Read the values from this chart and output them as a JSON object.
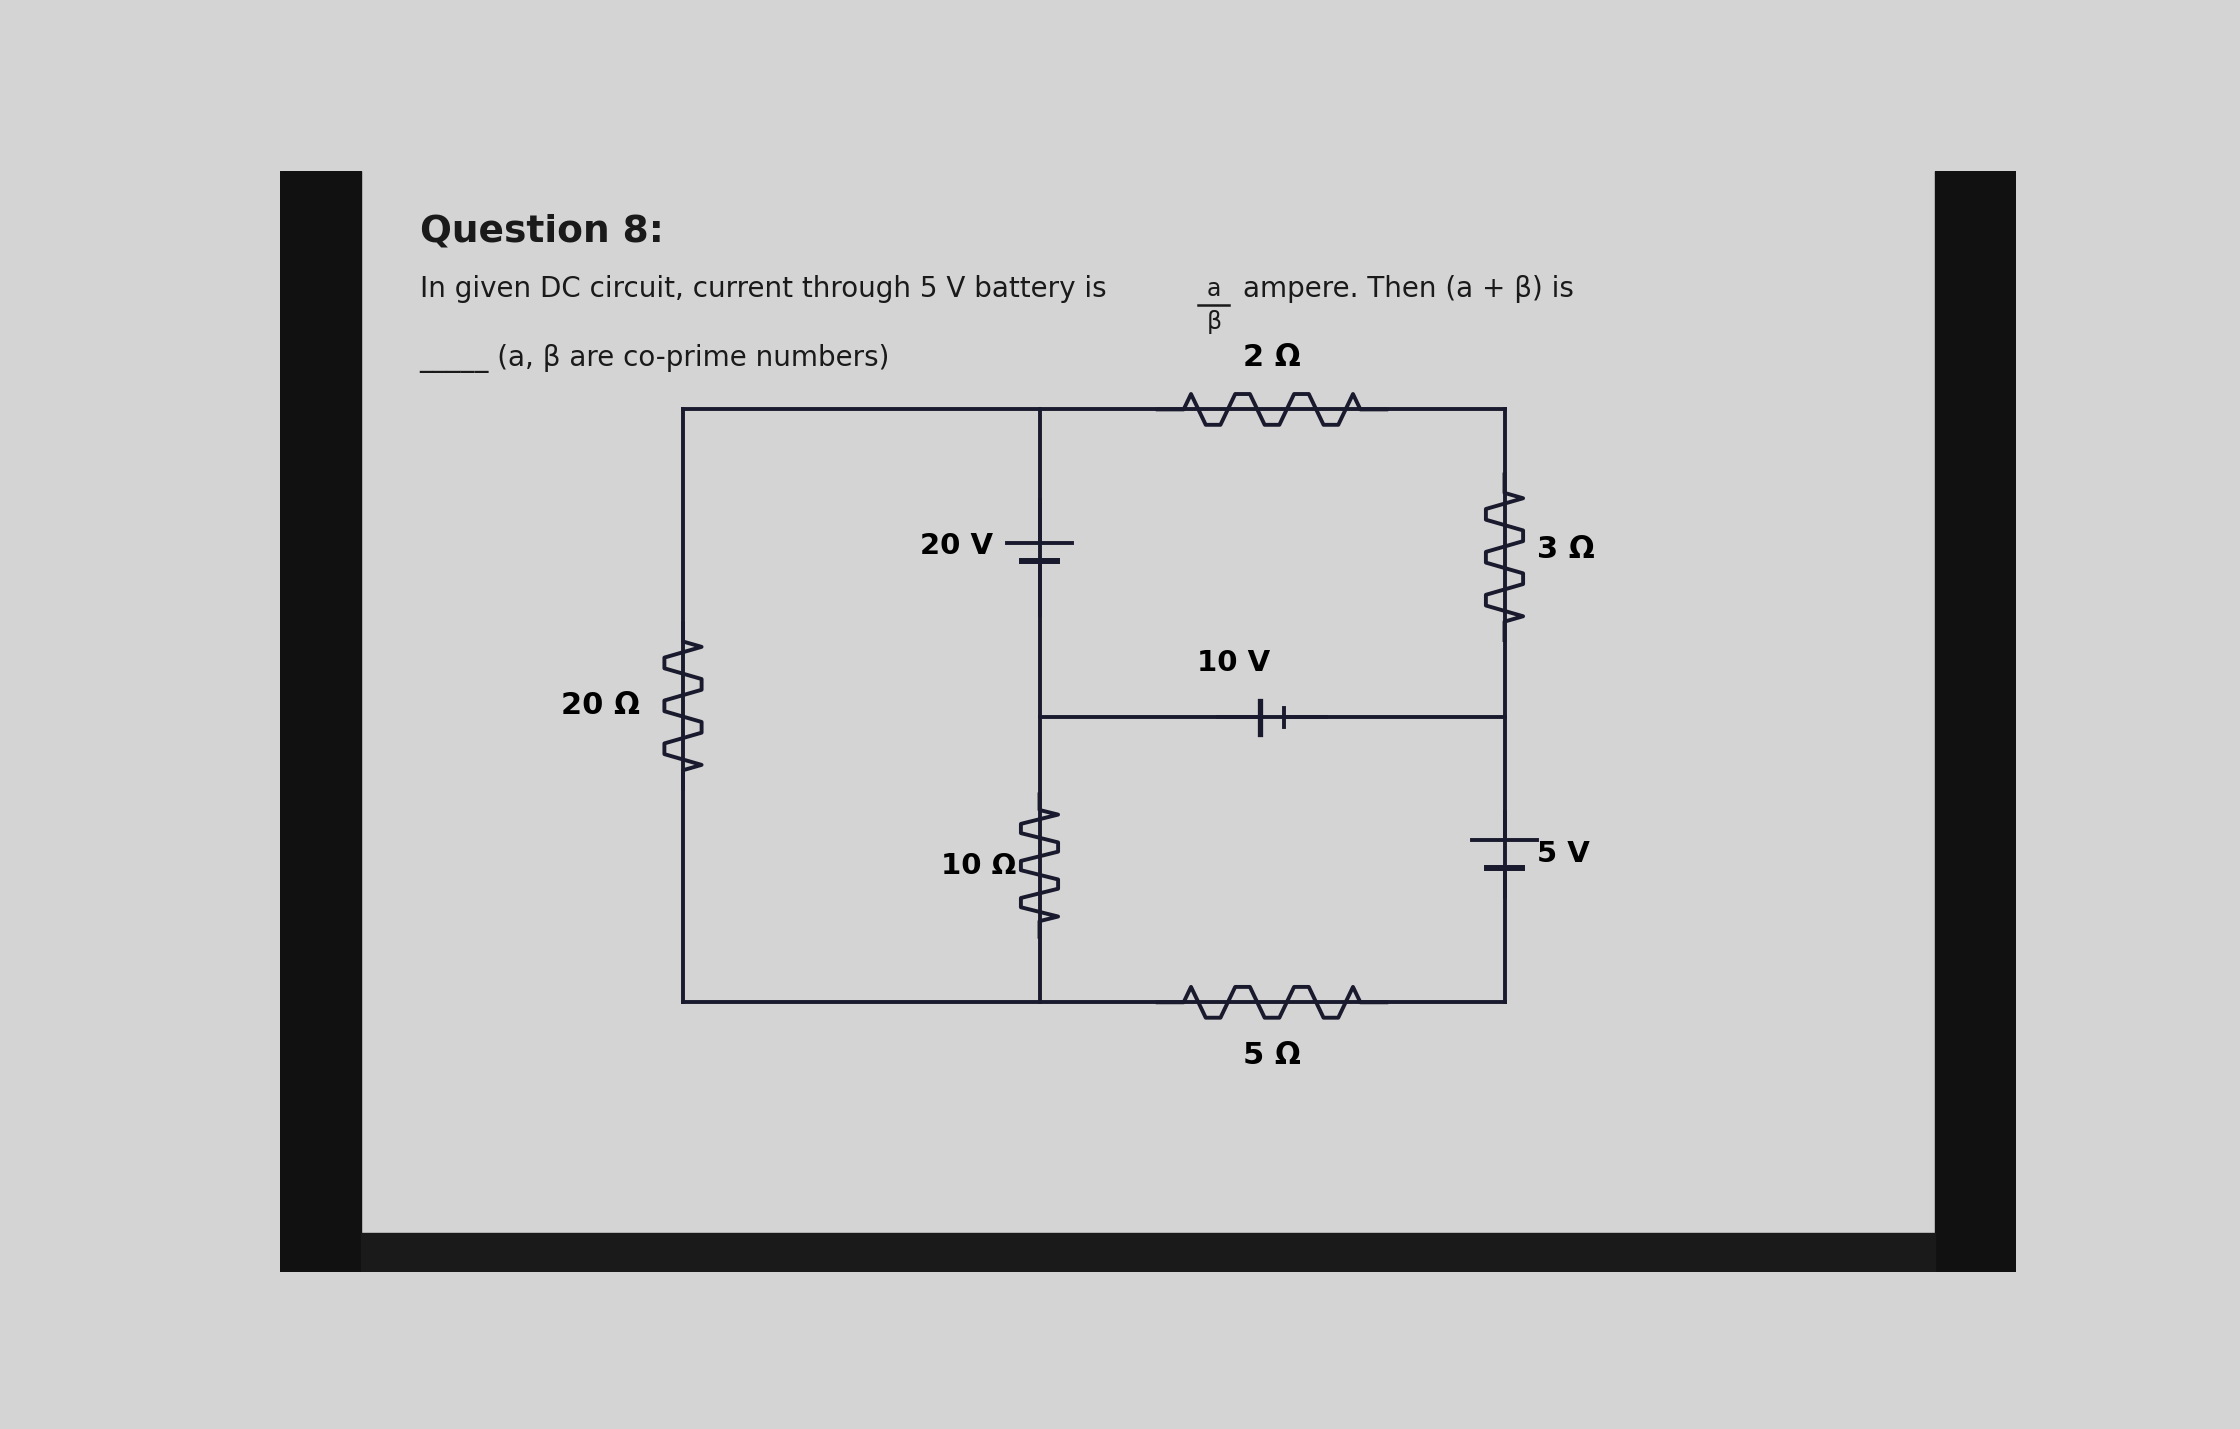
{
  "title": "Question 8:",
  "subtitle_part1": "In given DC circuit, current through 5 V battery is",
  "frac_num": "a",
  "frac_den": "β",
  "subtitle_part2": "ampere. Then (a + β) is",
  "subtitle_line2": "_____ (a, β are co-prime numbers)",
  "bg_color": "#d4d4d4",
  "dark_color": "#111111",
  "wire_color": "#1a1a2e",
  "R_left_label": "20 Ω",
  "R_mid_label": "10 Ω",
  "R_top_label": "2 Ω",
  "R_right_label": "3 Ω",
  "R_bottom_label": "5 Ω",
  "V_left_label": "20 V",
  "V_mid_label": "10 V",
  "V_right_label": "5 V"
}
